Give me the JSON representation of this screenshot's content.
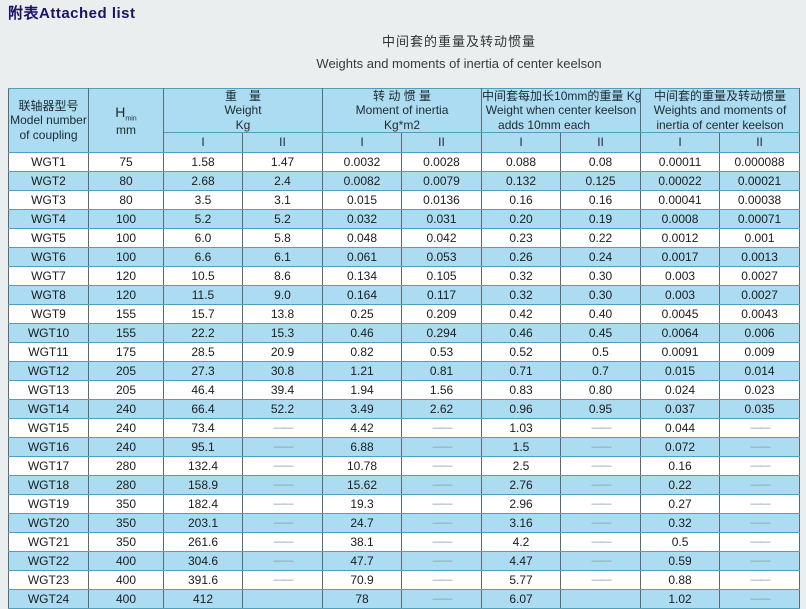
{
  "page": {
    "attached_list_label": "附表Attached list",
    "title_zh": "中间套的重量及转动惯量",
    "title_en": "Weights and moments of inertia of center keelson"
  },
  "colors": {
    "row_alt_blue": "#abdcf2",
    "border_teal": "#2f8fae",
    "attached_title_navy": "#1b1268"
  },
  "table": {
    "header": {
      "model": {
        "zh": "联轴器型号",
        "en1": "Model number",
        "en2": "of coupling"
      },
      "h": {
        "main": "H",
        "sub": "min",
        "unit": "mm"
      },
      "weight": {
        "zh": "重　量",
        "en": "Weight",
        "unit": "Kg"
      },
      "moment": {
        "zh": "转 动 惯 量",
        "en": "Moment of inertia",
        "unit": "Kg*m2"
      },
      "add10": {
        "zh": "中间套每加长10mm的重量 Kg",
        "en1": "Weight when center keelson",
        "en2": "adds 10mm each"
      },
      "keelson": {
        "zh": "中间套的重量及转动惯量",
        "en1": "Weights and moments of",
        "en2": "inertia of center keelson"
      },
      "sub_i": "I",
      "sub_ii": "II"
    },
    "rows": [
      [
        "WGT1",
        "75",
        "1.58",
        "1.47",
        "0.0032",
        "0.0028",
        "0.088",
        "0.08",
        "0.00011",
        "0.000088"
      ],
      [
        "WGT2",
        "80",
        "2.68",
        "2.4",
        "0.0082",
        "0.0079",
        "0.132",
        "0.125",
        "0.00022",
        "0.00021"
      ],
      [
        "WGT3",
        "80",
        "3.5",
        "3.1",
        "0.015",
        "0.0136",
        "0.16",
        "0.16",
        "0.00041",
        "0.00038"
      ],
      [
        "WGT4",
        "100",
        "5.2",
        "5.2",
        "0.032",
        "0.031",
        "0.20",
        "0.19",
        "0.0008",
        "0.00071"
      ],
      [
        "WGT5",
        "100",
        "6.0",
        "5.8",
        "0.048",
        "0.042",
        "0.23",
        "0.22",
        "0.0012",
        "0.001"
      ],
      [
        "WGT6",
        "100",
        "6.6",
        "6.1",
        "0.061",
        "0.053",
        "0.26",
        "0.24",
        "0.0017",
        "0.0013"
      ],
      [
        "WGT7",
        "120",
        "10.5",
        "8.6",
        "0.134",
        "0.105",
        "0.32",
        "0.30",
        "0.003",
        "0.0027"
      ],
      [
        "WGT8",
        "120",
        "11.5",
        "9.0",
        "0.164",
        "0.117",
        "0.32",
        "0.30",
        "0.003",
        "0.0027"
      ],
      [
        "WGT9",
        "155",
        "15.7",
        "13.8",
        "0.25",
        "0.209",
        "0.42",
        "0.40",
        "0.0045",
        "0.0043"
      ],
      [
        "WGT10",
        "155",
        "22.2",
        "15.3",
        "0.46",
        "0.294",
        "0.46",
        "0.45",
        "0.0064",
        "0.006"
      ],
      [
        "WGT11",
        "175",
        "28.5",
        "20.9",
        "0.82",
        "0.53",
        "0.52",
        "0.5",
        "0.0091",
        "0.009"
      ],
      [
        "WGT12",
        "205",
        "27.3",
        "30.8",
        "1.21",
        "0.81",
        "0.71",
        "0.7",
        "0.015",
        "0.014"
      ],
      [
        "WGT13",
        "205",
        "46.4",
        "39.4",
        "1.94",
        "1.56",
        "0.83",
        "0.80",
        "0.024",
        "0.023"
      ],
      [
        "WGT14",
        "240",
        "66.4",
        "52.2",
        "3.49",
        "2.62",
        "0.96",
        "0.95",
        "0.037",
        "0.035"
      ],
      [
        "WGT15",
        "240",
        "73.4",
        "——",
        "4.42",
        "——",
        "1.03",
        "——",
        "0.044",
        "——"
      ],
      [
        "WGT16",
        "240",
        "95.1",
        "——",
        "6.88",
        "——",
        "1.5",
        "——",
        "0.072",
        "——"
      ],
      [
        "WGT17",
        "280",
        "132.4",
        "——",
        "10.78",
        "——",
        "2.5",
        "——",
        "0.16",
        "——"
      ],
      [
        "WGT18",
        "280",
        "158.9",
        "——",
        "15.62",
        "——",
        "2.76",
        "——",
        "0.22",
        "——"
      ],
      [
        "WGT19",
        "350",
        "182.4",
        "——",
        "19.3",
        "——",
        "2.96",
        "——",
        "0.27",
        "——"
      ],
      [
        "WGT20",
        "350",
        "203.1",
        "——",
        "24.7",
        "——",
        "3.16",
        "——",
        "0.32",
        "——"
      ],
      [
        "WGT21",
        "350",
        "261.6",
        "——",
        "38.1",
        "——",
        "4.2",
        "——",
        "0.5",
        "——"
      ],
      [
        "WGT22",
        "400",
        "304.6",
        "——",
        "47.7",
        "——",
        "4.47",
        "——",
        "0.59",
        "——"
      ],
      [
        "WGT23",
        "400",
        "391.6",
        "——",
        "70.9",
        "——",
        "5.77",
        "——",
        "0.88",
        "——"
      ],
      [
        "WGT24",
        "400",
        "412",
        "",
        "78",
        "——",
        "6.07",
        "",
        "1.02",
        "——"
      ]
    ]
  }
}
